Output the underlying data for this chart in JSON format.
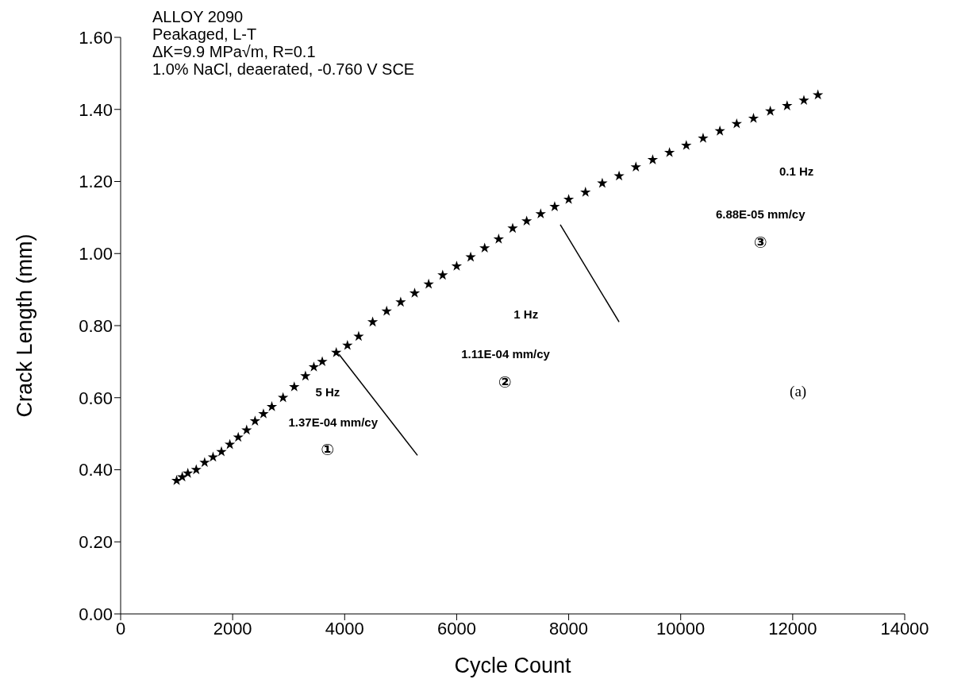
{
  "chart_data": {
    "type": "scatter",
    "title": "ALLOY 2090",
    "xlabel": "Cycle Count",
    "ylabel": "Crack Length (mm)",
    "xlim": [
      0,
      14000
    ],
    "xticks": [
      0,
      2000,
      4000,
      6000,
      8000,
      10000,
      12000,
      14000
    ],
    "ylim": [
      0,
      1.6
    ],
    "yticks": [
      {
        "value": 0,
        "label": "0.00"
      },
      {
        "value": 0.2,
        "label": "0.20"
      },
      {
        "value": 0.4,
        "label": "0.40"
      },
      {
        "value": 0.6,
        "label": "0.60"
      },
      {
        "value": 0.8,
        "label": "0.80"
      },
      {
        "value": 1.0,
        "label": "1.00"
      },
      {
        "value": 1.2,
        "label": "1.20"
      },
      {
        "value": 1.4,
        "label": "1.40"
      },
      {
        "value": 1.6,
        "label": "1.60"
      }
    ],
    "grid": false,
    "legend": false,
    "marker": "star",
    "series": [
      {
        "color": "#000000",
        "x": [
          1000,
          1100,
          1200,
          1350,
          1500,
          1650,
          1800,
          1950,
          2100,
          2250,
          2400,
          2550,
          2700,
          2900,
          3100,
          3300,
          3450,
          3600,
          3850,
          4050,
          4250,
          4500,
          4750,
          5000,
          5250,
          5500,
          5750,
          6000,
          6250,
          6500,
          6750,
          7000,
          7250,
          7500,
          7750,
          8000,
          8300,
          8600,
          8900,
          9200,
          9500,
          9800,
          10100,
          10400,
          10700,
          11000,
          11300,
          11600,
          11900,
          12200,
          12450
        ],
        "values": [
          0.37,
          0.38,
          0.39,
          0.4,
          0.42,
          0.435,
          0.45,
          0.47,
          0.49,
          0.51,
          0.535,
          0.555,
          0.575,
          0.6,
          0.63,
          0.66,
          0.685,
          0.7,
          0.725,
          0.745,
          0.77,
          0.81,
          0.84,
          0.865,
          0.89,
          0.915,
          0.94,
          0.965,
          0.99,
          1.015,
          1.04,
          1.07,
          1.09,
          1.11,
          1.13,
          1.15,
          1.17,
          1.195,
          1.215,
          1.24,
          1.26,
          1.28,
          1.3,
          1.32,
          1.34,
          1.36,
          1.375,
          1.395,
          1.41,
          1.425,
          1.44
        ]
      },
      {
        "type": "line",
        "color": "#000000",
        "marker": "none",
        "x": [
          3900,
          5300
        ],
        "values": [
          0.72,
          0.44
        ]
      },
      {
        "type": "line",
        "color": "#000000",
        "marker": "none",
        "x": [
          7850,
          8900
        ],
        "values": [
          1.08,
          0.81
        ]
      }
    ],
    "annotations": [
      "Peakaged, L-T",
      "ΔK=9.9 MPa√m, R=0.1",
      "1.0% NaCl, deaerated, -0.760 V SCE",
      "5 Hz",
      "1.37E-04 mm/cy",
      "①",
      "1 Hz",
      "1.11E-04 mm/cy",
      "②",
      "0.1 Hz",
      "6.88E-05 mm/cy",
      "③",
      "(a)"
    ]
  }
}
